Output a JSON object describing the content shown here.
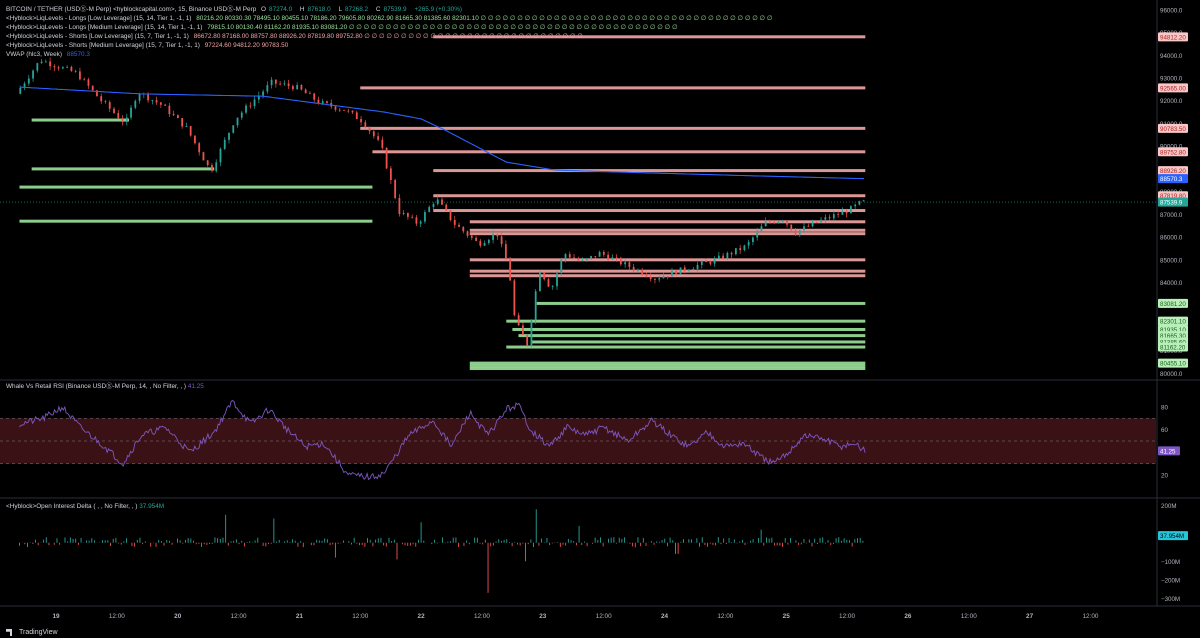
{
  "header": {
    "symbol_line": "BITCOIN / TETHER (USDⓈ-M Perp) <hyblockcapital.com>, 15, Binance USDⓈ-M Perp",
    "ohlc": {
      "o_label": "O",
      "o": "87274.0",
      "h_label": "H",
      "h": "87618.0",
      "l_label": "L",
      "l": "87268.2",
      "c_label": "C",
      "c": "87539.9",
      "change": "+265.9 (+0.30%)"
    },
    "ind1_title": "<Hyblock>LiqLevels - Longs [Low Leverage] (15, 14, Tier 1, -1, 1)",
    "ind1_values": "80216.20  80330.30  78495.10  80455.10  78186.20  79605.80  80262.90  81665.30  81385.60  82301.10  ∅ ∅ ∅ ∅ ∅ ∅ ∅ ∅ ∅ ∅ ∅ ∅ ∅ ∅ ∅ ∅ ∅ ∅ ∅ ∅ ∅ ∅ ∅ ∅ ∅ ∅ ∅ ∅ ∅ ∅ ∅ ∅ ∅ ∅ ∅ ∅ ∅ ∅ ∅ ∅",
    "ind2_title": "<Hyblock>LiqLevels - Longs [Medium Leverage] (15, 14, Tier 1, -1, 1)",
    "ind2_values": "79815.10  80130.40  81162.20  81935.10  83081.20  ∅ ∅ ∅ ∅ ∅ ∅ ∅ ∅ ∅ ∅ ∅ ∅ ∅ ∅ ∅ ∅ ∅ ∅ ∅ ∅ ∅ ∅ ∅ ∅ ∅ ∅ ∅ ∅ ∅ ∅ ∅ ∅ ∅ ∅ ∅ ∅ ∅ ∅ ∅ ∅ ∅ ∅ ∅ ∅ ∅",
    "ind3_title": "<Hyblock>LiqLevels - Shorts [Low Leverage] (15, 7, Tier 1, -1, 1)",
    "ind3_values": "86672.80  87168.00  88757.80  88926.20  87819.80  89752.80  ∅ ∅ ∅ ∅ ∅ ∅ ∅ ∅ ∅ ∅ ∅ ∅ ∅ ∅ ∅ ∅ ∅ ∅ ∅ ∅ ∅ ∅ ∅ ∅ ∅ ∅ ∅ ∅ ∅ ∅",
    "ind4_title": "<Hyblock>LiqLevels - Shorts [Medium Leverage] (15, 7, Tier 1, -1, 1)",
    "ind4_values": "97224.60  94812.20  90783.50",
    "vwap_title": "VWAP (hlc3, Week)",
    "vwap_value": "88570.3"
  },
  "rsi_title": "Whale Vs Retail RSI (Binance USDⓈ-M Perp, 14, , No Filter, , )",
  "rsi_value": "41.25",
  "oi_title": "<Hyblock>Open Interest Delta ( , , No Filter, , )",
  "oi_value": "37.954M",
  "footer_brand": "TradingView",
  "colors": {
    "bg": "#000000",
    "up": "#26a69a",
    "down": "#ef5350",
    "vwap": "#2962ff",
    "long": "#9be39b",
    "short": "#f3a6a6",
    "rsi": "#7e57c2",
    "axis": "#b2b5be"
  },
  "chart_data": [
    {
      "type": "candlestick",
      "title": "BITCOIN / TETHER (USDⓈ-M Perp), 15",
      "x_ticks": [
        "19",
        "12:00",
        "20",
        "12:00",
        "21",
        "12:00",
        "22",
        "12:00",
        "23",
        "12:00",
        "24",
        "12:00",
        "25",
        "12:00",
        "26",
        "12:00",
        "27",
        "12:00"
      ],
      "y_ticks": [
        96000,
        95000,
        94000,
        93000,
        92000,
        91000,
        90000,
        89000,
        88000,
        87000,
        86000,
        85000,
        84000,
        83000,
        82000,
        81000,
        80000
      ],
      "ylim": [
        79800,
        96300
      ],
      "price_path": [
        {
          "t": 0.0,
          "p": 92300
        },
        {
          "t": 0.2,
          "p": 93800
        },
        {
          "t": 0.5,
          "p": 93200
        },
        {
          "t": 0.7,
          "p": 92000
        },
        {
          "t": 0.9,
          "p": 91000
        },
        {
          "t": 1.0,
          "p": 92400
        },
        {
          "t": 1.2,
          "p": 91800
        },
        {
          "t": 1.4,
          "p": 90800
        },
        {
          "t": 1.6,
          "p": 88900
        },
        {
          "t": 1.8,
          "p": 91200
        },
        {
          "t": 2.1,
          "p": 92800
        },
        {
          "t": 2.3,
          "p": 92600
        },
        {
          "t": 2.5,
          "p": 91900
        },
        {
          "t": 2.7,
          "p": 91600
        },
        {
          "t": 2.85,
          "p": 91100
        },
        {
          "t": 3.0,
          "p": 90000
        },
        {
          "t": 3.15,
          "p": 87100
        },
        {
          "t": 3.3,
          "p": 86600
        },
        {
          "t": 3.45,
          "p": 87700
        },
        {
          "t": 3.6,
          "p": 86600
        },
        {
          "t": 3.8,
          "p": 85700
        },
        {
          "t": 3.95,
          "p": 86200
        },
        {
          "t": 4.05,
          "p": 84600
        },
        {
          "t": 4.1,
          "p": 82300
        },
        {
          "t": 4.2,
          "p": 81300
        },
        {
          "t": 4.3,
          "p": 84600
        },
        {
          "t": 4.4,
          "p": 83700
        },
        {
          "t": 4.5,
          "p": 85300
        },
        {
          "t": 4.65,
          "p": 84900
        },
        {
          "t": 4.8,
          "p": 85300
        },
        {
          "t": 5.0,
          "p": 84800
        },
        {
          "t": 5.25,
          "p": 84200
        },
        {
          "t": 5.5,
          "p": 84600
        },
        {
          "t": 5.75,
          "p": 85000
        },
        {
          "t": 6.0,
          "p": 85600
        },
        {
          "t": 6.15,
          "p": 86600
        },
        {
          "t": 6.3,
          "p": 86800
        },
        {
          "t": 6.4,
          "p": 86200
        },
        {
          "t": 6.6,
          "p": 86700
        },
        {
          "t": 6.85,
          "p": 87200
        },
        {
          "t": 6.95,
          "p": 87540
        }
      ],
      "last_price": 87539.9,
      "vwap": {
        "name": "VWAP (hlc3, Week)",
        "value": 88570.3,
        "path": [
          {
            "t": 0.0,
            "p": 92600
          },
          {
            "t": 1.0,
            "p": 92300
          },
          {
            "t": 2.0,
            "p": 92200
          },
          {
            "t": 3.0,
            "p": 91500
          },
          {
            "t": 3.3,
            "p": 91200
          },
          {
            "t": 3.5,
            "p": 90700
          },
          {
            "t": 4.0,
            "p": 89300
          },
          {
            "t": 4.4,
            "p": 88950
          },
          {
            "t": 5.0,
            "p": 88850
          },
          {
            "t": 6.0,
            "p": 88700
          },
          {
            "t": 6.95,
            "p": 88570
          }
        ]
      },
      "short_levels": [
        {
          "price": 97224.6,
          "t0": 3.4
        },
        {
          "price": 94812.2,
          "t0": 3.4
        },
        {
          "price": 92565.0,
          "t0": 2.8
        },
        {
          "price": 90783.5,
          "t0": 2.8
        },
        {
          "price": 89752.8,
          "t0": 2.9
        },
        {
          "price": 88926.2,
          "t0": 3.4
        },
        {
          "price": 87819.8,
          "t0": 3.4
        },
        {
          "price": 87168.0,
          "t0": 3.4
        },
        {
          "price": 86672.8,
          "t0": 3.7
        },
        {
          "price": 86300.0,
          "t0": 3.7
        },
        {
          "price": 86150.0,
          "t0": 3.7
        },
        {
          "price": 85000.0,
          "t0": 3.7
        },
        {
          "price": 84500.0,
          "t0": 3.7
        },
        {
          "price": 84300.0,
          "t0": 3.7
        }
      ],
      "long_levels": [
        {
          "price": 91150.0,
          "t0": 0.1,
          "t1": 0.9
        },
        {
          "price": 89000.0,
          "t0": 0.1,
          "t1": 1.6
        },
        {
          "price": 88200.0,
          "t0": 0.0,
          "t1": 2.9
        },
        {
          "price": 86700.0,
          "t0": 0.0,
          "t1": 2.9
        },
        {
          "price": 83081.2,
          "t0": 4.25
        },
        {
          "price": 82301.1,
          "t0": 4.0
        },
        {
          "price": 81935.1,
          "t0": 4.05
        },
        {
          "price": 81665.3,
          "t0": 4.1
        },
        {
          "price": 81385.6,
          "t0": 4.2
        },
        {
          "price": 81162.2,
          "t0": 4.0
        },
        {
          "price": 80455.1,
          "t0": 3.7
        },
        {
          "price": 80330.3,
          "t0": 3.7
        },
        {
          "price": 80216.2,
          "t0": 3.7
        }
      ],
      "price_labels": [
        {
          "text": "94812.20",
          "price": 94812.2,
          "kind": "short"
        },
        {
          "text": "92565.00",
          "price": 92565.0,
          "kind": "short"
        },
        {
          "text": "90783.50",
          "price": 90783.5,
          "kind": "short"
        },
        {
          "text": "89752.80",
          "price": 89752.8,
          "kind": "short"
        },
        {
          "text": "88926.20",
          "price": 88926.2,
          "kind": "short"
        },
        {
          "text": "88570.3",
          "price": 88570.3,
          "kind": "vwap"
        },
        {
          "text": "87819.80",
          "price": 87819.8,
          "kind": "short"
        },
        {
          "text": "87539.9",
          "price": 87539.9,
          "kind": "last"
        },
        {
          "text": "83081.20",
          "price": 83081.2,
          "kind": "long"
        },
        {
          "text": "82301.10",
          "price": 82301.1,
          "kind": "long"
        },
        {
          "text": "81935.10",
          "price": 81935.1,
          "kind": "long"
        },
        {
          "text": "81665.30",
          "price": 81665.3,
          "kind": "long"
        },
        {
          "text": "81385.60",
          "price": 81385.6,
          "kind": "long"
        },
        {
          "text": "81162.20",
          "price": 81162.2,
          "kind": "long"
        },
        {
          "text": "80455.10",
          "price": 80455.1,
          "kind": "long"
        }
      ]
    },
    {
      "type": "line",
      "title": "Whale Vs Retail RSI (Binance USDⓈ-M Perp, 14, , No Filter, , )",
      "y_ticks": [
        80,
        60,
        20
      ],
      "ylim": [
        5,
        95
      ],
      "band": [
        30,
        70
      ],
      "midline": 50,
      "last_value": 41.25,
      "path": [
        {
          "t": 0.0,
          "v": 65
        },
        {
          "t": 0.2,
          "v": 70
        },
        {
          "t": 0.35,
          "v": 80
        },
        {
          "t": 0.5,
          "v": 62
        },
        {
          "t": 0.7,
          "v": 45
        },
        {
          "t": 0.85,
          "v": 30
        },
        {
          "t": 1.0,
          "v": 55
        },
        {
          "t": 1.2,
          "v": 62
        },
        {
          "t": 1.4,
          "v": 40
        },
        {
          "t": 1.6,
          "v": 58
        },
        {
          "t": 1.75,
          "v": 85
        },
        {
          "t": 1.9,
          "v": 65
        },
        {
          "t": 2.05,
          "v": 78
        },
        {
          "t": 2.2,
          "v": 60
        },
        {
          "t": 2.35,
          "v": 45
        },
        {
          "t": 2.5,
          "v": 48
        },
        {
          "t": 2.7,
          "v": 20
        },
        {
          "t": 2.9,
          "v": 18
        },
        {
          "t": 3.0,
          "v": 22
        },
        {
          "t": 3.2,
          "v": 55
        },
        {
          "t": 3.4,
          "v": 68
        },
        {
          "t": 3.55,
          "v": 45
        },
        {
          "t": 3.7,
          "v": 75
        },
        {
          "t": 3.85,
          "v": 55
        },
        {
          "t": 4.0,
          "v": 78
        },
        {
          "t": 4.1,
          "v": 82
        },
        {
          "t": 4.2,
          "v": 60
        },
        {
          "t": 4.35,
          "v": 45
        },
        {
          "t": 4.5,
          "v": 62
        },
        {
          "t": 4.65,
          "v": 55
        },
        {
          "t": 4.8,
          "v": 62
        },
        {
          "t": 5.0,
          "v": 50
        },
        {
          "t": 5.2,
          "v": 68
        },
        {
          "t": 5.35,
          "v": 55
        },
        {
          "t": 5.5,
          "v": 45
        },
        {
          "t": 5.65,
          "v": 58
        },
        {
          "t": 5.8,
          "v": 45
        },
        {
          "t": 5.95,
          "v": 48
        },
        {
          "t": 6.1,
          "v": 35
        },
        {
          "t": 6.2,
          "v": 30
        },
        {
          "t": 6.3,
          "v": 38
        },
        {
          "t": 6.45,
          "v": 55
        },
        {
          "t": 6.6,
          "v": 52
        },
        {
          "t": 6.75,
          "v": 45
        },
        {
          "t": 6.85,
          "v": 48
        },
        {
          "t": 6.95,
          "v": 41.25
        }
      ]
    },
    {
      "type": "bar",
      "title": "<Hyblock>Open Interest Delta ( , , No Filter, , )",
      "y_ticks": [
        "200M",
        "0",
        "−100M",
        "−200M",
        "−300M"
      ],
      "y_values": [
        200,
        0,
        -100,
        -200,
        -300
      ],
      "ylim": [
        -330,
        230
      ],
      "units": "M",
      "last_value": 37.954,
      "spikes": [
        {
          "t": 1.7,
          "v": 150
        },
        {
          "t": 2.1,
          "v": 130
        },
        {
          "t": 2.6,
          "v": -80
        },
        {
          "t": 3.1,
          "v": -90
        },
        {
          "t": 3.3,
          "v": 110
        },
        {
          "t": 3.85,
          "v": -270
        },
        {
          "t": 4.15,
          "v": -100
        },
        {
          "t": 4.25,
          "v": 180
        },
        {
          "t": 4.6,
          "v": 90
        },
        {
          "t": 5.4,
          "v": -60
        },
        {
          "t": 6.1,
          "v": 70
        }
      ]
    }
  ]
}
